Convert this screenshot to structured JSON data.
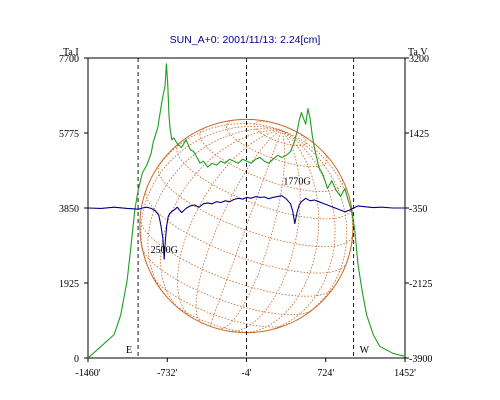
{
  "chart_data": {
    "type": "line",
    "title": "SUN_A+0: 2001/11/13: 2.24[cm]",
    "left_axis_label": "Ta,I",
    "right_axis_label": "Ta,V",
    "x_ticks": [
      "-1460'",
      "-732'",
      "-4'",
      "724'",
      "1452'"
    ],
    "y_left_ticks": [
      "0",
      "1925",
      "3850",
      "5775",
      "7700"
    ],
    "y_right_ticks": [
      "-3900",
      "-2125",
      "-350",
      "1425",
      "3200"
    ],
    "xlim": [
      -1460,
      1452
    ],
    "ylim_left": [
      0,
      7700
    ],
    "ylim_right": [
      -3900,
      3200
    ],
    "grid": false,
    "markers": [
      {
        "label": "E",
        "x": -1000
      },
      {
        "label": "",
        "x": -4
      },
      {
        "label": "W",
        "x": 980
      }
    ],
    "annotations": [
      {
        "text": "2500G",
        "x": -760,
        "y_left": 2700
      },
      {
        "text": "1770G",
        "x": 460,
        "y_left": 4450
      }
    ],
    "series": [
      {
        "axis": "left",
        "color": "#1e9e1e",
        "x": [
          -1460,
          -1340,
          -1220,
          -1160,
          -1100,
          -1060,
          -1030,
          -1000,
          -960,
          -920,
          -880,
          -860,
          -820,
          -780,
          -752,
          -740,
          -728,
          -716,
          -704,
          -690,
          -672,
          -640,
          -600,
          -560,
          -520,
          -490,
          -460,
          -430,
          -400,
          -360,
          -320,
          -280,
          -240,
          -200,
          -160,
          -120,
          -80,
          -40,
          0,
          40,
          80,
          120,
          160,
          200,
          240,
          280,
          320,
          360,
          400,
          430,
          460,
          480,
          500,
          520,
          540,
          560,
          580,
          600,
          620,
          660,
          700,
          740,
          780,
          820,
          860,
          900,
          930,
          960,
          990,
          1020,
          1060,
          1100,
          1160,
          1220,
          1340,
          1452
        ],
        "values": [
          0,
          300,
          600,
          1100,
          2000,
          3000,
          3800,
          4300,
          4750,
          4950,
          5250,
          5550,
          5900,
          6600,
          7000,
          7550,
          7050,
          6200,
          5850,
          5600,
          5650,
          5500,
          5400,
          5600,
          5350,
          5300,
          5150,
          5000,
          5050,
          4900,
          5000,
          4950,
          5050,
          5000,
          5100,
          5050,
          5000,
          5100,
          5050,
          5000,
          5100,
          5150,
          5050,
          5000,
          5100,
          5200,
          5150,
          5200,
          5300,
          5500,
          5800,
          6100,
          6300,
          6150,
          6000,
          6400,
          6150,
          5700,
          5400,
          4900,
          4700,
          4350,
          4550,
          4300,
          4150,
          4350,
          4050,
          3800,
          3300,
          2400,
          1700,
          1100,
          600,
          300,
          120,
          40
        ]
      },
      {
        "axis": "right",
        "color": "#00008b",
        "x": [
          -1460,
          -1340,
          -1220,
          -1100,
          -1040,
          -1000,
          -960,
          -920,
          -880,
          -840,
          -810,
          -790,
          -772,
          -760,
          -748,
          -736,
          -724,
          -710,
          -690,
          -670,
          -640,
          -600,
          -560,
          -520,
          -480,
          -440,
          -400,
          -360,
          -320,
          -280,
          -240,
          -200,
          -160,
          -120,
          -80,
          -40,
          0,
          40,
          80,
          120,
          160,
          200,
          240,
          280,
          320,
          360,
          400,
          420,
          440,
          460,
          480,
          500,
          540,
          580,
          620,
          660,
          700,
          740,
          780,
          820,
          860,
          900,
          940,
          980,
          1020,
          1080,
          1160,
          1240,
          1340,
          1452
        ],
        "values": [
          -350,
          -360,
          -330,
          -360,
          -370,
          -380,
          -350,
          -330,
          -360,
          -420,
          -520,
          -760,
          -1080,
          -1560,
          -1080,
          -760,
          -560,
          -480,
          -430,
          -400,
          -330,
          -460,
          -360,
          -300,
          -280,
          -330,
          -250,
          -230,
          -250,
          -200,
          -220,
          -180,
          -200,
          -150,
          -120,
          -140,
          -100,
          -120,
          -80,
          -100,
          -90,
          -130,
          -100,
          -80,
          -60,
          -130,
          -250,
          -420,
          -720,
          -460,
          -280,
          -200,
          -120,
          -180,
          -160,
          -200,
          -240,
          -280,
          -320,
          -360,
          -400,
          -440,
          -400,
          -350,
          -300,
          -320,
          -340,
          -330,
          -350,
          -350
        ]
      }
    ],
    "disk": {
      "center_x": -4,
      "radius_x": 980
    }
  }
}
